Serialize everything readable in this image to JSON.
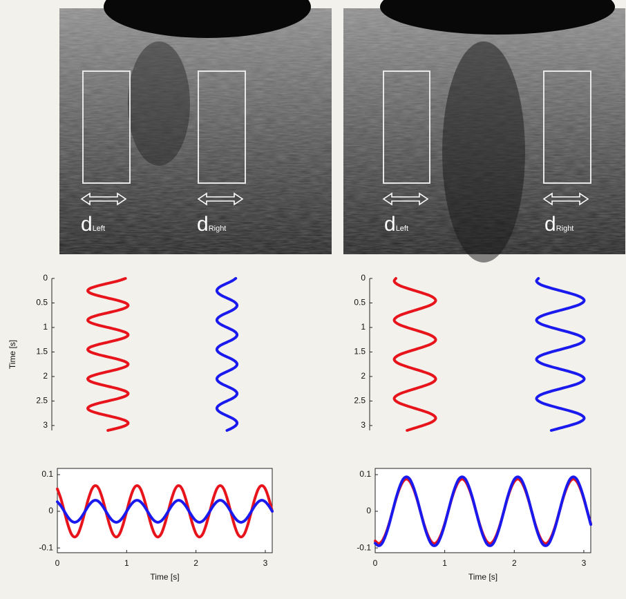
{
  "images": [
    {
      "labels": [
        {
          "main": "d",
          "sub": "Left"
        },
        {
          "main": "d",
          "sub": "Right"
        }
      ]
    },
    {
      "labels": [
        {
          "main": "d",
          "sub": "Left"
        },
        {
          "main": "d",
          "sub": "Right"
        }
      ]
    }
  ],
  "chart_data": [
    {
      "type": "line",
      "orientation": "vertical",
      "xlabel": "Time [s]",
      "x": [
        0,
        0.05,
        0.1,
        0.15,
        0.2,
        0.25,
        0.3,
        0.35,
        0.4,
        0.45,
        0.5,
        0.55,
        0.6,
        0.65,
        0.7,
        0.75,
        0.8,
        0.85,
        0.9,
        0.95,
        1,
        1.05,
        1.1,
        1.15,
        1.2,
        1.25,
        1.3,
        1.35,
        1.4,
        1.45,
        1.5,
        1.55,
        1.6,
        1.65,
        1.7,
        1.75,
        1.8,
        1.85,
        1.9,
        1.95,
        2,
        2.05,
        2.1,
        2.15,
        2.2,
        2.25,
        2.3,
        2.35,
        2.4,
        2.45,
        2.5,
        2.55,
        2.6,
        2.65,
        2.7,
        2.75,
        2.8,
        2.85,
        2.9,
        2.95,
        3,
        3.05,
        3.1
      ],
      "xlim": [
        0,
        3.1
      ],
      "xticks": [
        0,
        0.5,
        1,
        1.5,
        2,
        2.5,
        3
      ],
      "ylim": [
        0,
        1
      ],
      "series": [
        {
          "color": "#e8141c",
          "values": [
            0.328,
            0.295,
            0.25,
            0.205,
            0.172,
            0.16,
            0.172,
            0.205,
            0.25,
            0.295,
            0.328,
            0.34,
            0.328,
            0.295,
            0.25,
            0.205,
            0.172,
            0.16,
            0.172,
            0.205,
            0.25,
            0.295,
            0.328,
            0.34,
            0.328,
            0.295,
            0.25,
            0.205,
            0.172,
            0.16,
            0.172,
            0.205,
            0.25,
            0.295,
            0.328,
            0.34,
            0.328,
            0.295,
            0.25,
            0.205,
            0.172,
            0.16,
            0.172,
            0.205,
            0.25,
            0.295,
            0.328,
            0.34,
            0.328,
            0.295,
            0.25,
            0.205,
            0.172,
            0.16,
            0.172,
            0.205,
            0.25,
            0.295,
            0.328,
            0.34,
            0.328,
            0.295,
            0.25
          ]
        },
        {
          "color": "#1a1aee",
          "values": [
            0.819,
            0.803,
            0.78,
            0.757,
            0.741,
            0.735,
            0.741,
            0.757,
            0.78,
            0.803,
            0.819,
            0.825,
            0.819,
            0.803,
            0.78,
            0.757,
            0.741,
            0.735,
            0.741,
            0.757,
            0.78,
            0.803,
            0.819,
            0.825,
            0.819,
            0.803,
            0.78,
            0.757,
            0.741,
            0.735,
            0.741,
            0.757,
            0.78,
            0.803,
            0.819,
            0.825,
            0.819,
            0.803,
            0.78,
            0.757,
            0.741,
            0.735,
            0.741,
            0.757,
            0.78,
            0.803,
            0.819,
            0.825,
            0.819,
            0.803,
            0.78,
            0.757,
            0.741,
            0.735,
            0.741,
            0.757,
            0.78,
            0.803,
            0.819,
            0.825,
            0.819,
            0.803,
            0.78
          ]
        }
      ]
    },
    {
      "type": "line",
      "orientation": "vertical",
      "x": [
        0,
        0.05,
        0.1,
        0.15,
        0.2,
        0.25,
        0.3,
        0.35,
        0.4,
        0.45,
        0.5,
        0.55,
        0.6,
        0.65,
        0.7,
        0.75,
        0.8,
        0.85,
        0.9,
        0.95,
        1,
        1.05,
        1.1,
        1.15,
        1.2,
        1.25,
        1.3,
        1.35,
        1.4,
        1.45,
        1.5,
        1.55,
        1.6,
        1.65,
        1.7,
        1.75,
        1.8,
        1.85,
        1.9,
        1.95,
        2,
        2.05,
        2.1,
        2.15,
        2.2,
        2.25,
        2.3,
        2.35,
        2.4,
        2.45,
        2.5,
        2.55,
        2.6,
        2.65,
        2.7,
        2.75,
        2.8,
        2.85,
        2.9,
        2.95,
        3,
        3.05,
        3.1
      ],
      "xlim": [
        0,
        3.1
      ],
      "xticks": [
        0,
        0.5,
        1,
        1.5,
        2,
        2.5,
        3
      ],
      "ylim": [
        0,
        1
      ],
      "series": [
        {
          "color": "#e8141c",
          "values": [
            0.11,
            0.103,
            0.11,
            0.128,
            0.157,
            0.19,
            0.223,
            0.252,
            0.27,
            0.277,
            0.27,
            0.252,
            0.223,
            0.19,
            0.157,
            0.128,
            0.11,
            0.103,
            0.11,
            0.128,
            0.157,
            0.19,
            0.223,
            0.252,
            0.27,
            0.277,
            0.27,
            0.252,
            0.223,
            0.19,
            0.157,
            0.128,
            0.11,
            0.103,
            0.11,
            0.128,
            0.157,
            0.19,
            0.223,
            0.252,
            0.27,
            0.277,
            0.27,
            0.252,
            0.223,
            0.19,
            0.157,
            0.128,
            0.11,
            0.103,
            0.11,
            0.128,
            0.157,
            0.19,
            0.223,
            0.252,
            0.27,
            0.277,
            0.27,
            0.252,
            0.223,
            0.19,
            0.157
          ]
        },
        {
          "color": "#1a1aee",
          "values": [
            0.708,
            0.7,
            0.708,
            0.729,
            0.762,
            0.8,
            0.838,
            0.871,
            0.892,
            0.9,
            0.892,
            0.871,
            0.838,
            0.8,
            0.762,
            0.729,
            0.708,
            0.7,
            0.708,
            0.729,
            0.762,
            0.8,
            0.838,
            0.871,
            0.892,
            0.9,
            0.892,
            0.871,
            0.838,
            0.8,
            0.762,
            0.729,
            0.708,
            0.7,
            0.708,
            0.729,
            0.762,
            0.8,
            0.838,
            0.871,
            0.892,
            0.9,
            0.892,
            0.871,
            0.838,
            0.8,
            0.762,
            0.729,
            0.708,
            0.7,
            0.708,
            0.729,
            0.762,
            0.8,
            0.838,
            0.871,
            0.892,
            0.9,
            0.892,
            0.871,
            0.838,
            0.8,
            0.762
          ]
        }
      ]
    },
    {
      "type": "line",
      "xlabel": "Time [s]",
      "x": [
        0,
        0.05,
        0.1,
        0.15,
        0.2,
        0.25,
        0.3,
        0.35,
        0.4,
        0.45,
        0.5,
        0.55,
        0.6,
        0.65,
        0.7,
        0.75,
        0.8,
        0.85,
        0.9,
        0.95,
        1,
        1.05,
        1.1,
        1.15,
        1.2,
        1.25,
        1.3,
        1.35,
        1.4,
        1.45,
        1.5,
        1.55,
        1.6,
        1.65,
        1.7,
        1.75,
        1.8,
        1.85,
        1.9,
        1.95,
        2,
        2.05,
        2.1,
        2.15,
        2.2,
        2.25,
        2.3,
        2.35,
        2.4,
        2.45,
        2.5,
        2.55,
        2.6,
        2.65,
        2.7,
        2.75,
        2.8,
        2.85,
        2.9,
        2.95,
        3,
        3.05,
        3.1
      ],
      "xlim": [
        0,
        3.1
      ],
      "xticks": [
        0,
        1,
        2,
        3
      ],
      "ylim": [
        -0.113,
        0.117
      ],
      "yticks": [
        -0.1,
        0,
        0.1
      ],
      "series": [
        {
          "color": "#e8141c",
          "values": [
            0.061,
            0.035,
            0,
            -0.035,
            -0.061,
            -0.07,
            -0.061,
            -0.035,
            0,
            0.035,
            0.061,
            0.07,
            0.061,
            0.035,
            0,
            -0.035,
            -0.061,
            -0.07,
            -0.061,
            -0.035,
            0,
            0.035,
            0.061,
            0.07,
            0.061,
            0.035,
            0,
            -0.035,
            -0.061,
            -0.07,
            -0.061,
            -0.035,
            0,
            0.035,
            0.061,
            0.07,
            0.061,
            0.035,
            0,
            -0.035,
            -0.061,
            -0.07,
            -0.061,
            -0.035,
            0,
            0.035,
            0.061,
            0.07,
            0.061,
            0.035,
            0,
            -0.035,
            -0.061,
            -0.07,
            -0.061,
            -0.035,
            0,
            0.035,
            0.061,
            0.07,
            0.061,
            0.035,
            0
          ]
        },
        {
          "color": "#1a1aee",
          "values": [
            0.026,
            0.015,
            0,
            -0.015,
            -0.026,
            -0.03,
            -0.026,
            -0.015,
            0,
            0.015,
            0.026,
            0.03,
            0.026,
            0.015,
            0,
            -0.015,
            -0.026,
            -0.03,
            -0.026,
            -0.015,
            0,
            0.015,
            0.026,
            0.03,
            0.026,
            0.015,
            0,
            -0.015,
            -0.026,
            -0.03,
            -0.026,
            -0.015,
            0,
            0.015,
            0.026,
            0.03,
            0.026,
            0.015,
            0,
            -0.015,
            -0.026,
            -0.03,
            -0.026,
            -0.015,
            0,
            0.015,
            0.026,
            0.03,
            0.026,
            0.015,
            0,
            -0.015,
            -0.026,
            -0.03,
            -0.026,
            -0.015,
            0,
            0.015,
            0.026,
            0.03,
            0.026,
            0.015,
            0
          ]
        }
      ]
    },
    {
      "type": "line",
      "xlabel": "Time [s]",
      "x": [
        0,
        0.05,
        0.1,
        0.15,
        0.2,
        0.25,
        0.3,
        0.35,
        0.4,
        0.45,
        0.5,
        0.55,
        0.6,
        0.65,
        0.7,
        0.75,
        0.8,
        0.85,
        0.9,
        0.95,
        1,
        1.05,
        1.1,
        1.15,
        1.2,
        1.25,
        1.3,
        1.35,
        1.4,
        1.45,
        1.5,
        1.55,
        1.6,
        1.65,
        1.7,
        1.75,
        1.8,
        1.85,
        1.9,
        1.95,
        2,
        2.05,
        2.1,
        2.15,
        2.2,
        2.25,
        2.3,
        2.35,
        2.4,
        2.45,
        2.5,
        2.55,
        2.6,
        2.65,
        2.7,
        2.75,
        2.8,
        2.85,
        2.9,
        2.95,
        3,
        3.05,
        3.1
      ],
      "xlim": [
        0,
        3.1
      ],
      "xticks": [
        0,
        1,
        2,
        3
      ],
      "ylim": [
        -0.113,
        0.117
      ],
      "yticks": [
        -0.1,
        0,
        0.1
      ],
      "series": [
        {
          "color": "#e8141c",
          "values": [
            -0.081,
            -0.088,
            -0.081,
            -0.062,
            -0.034,
            0,
            0.034,
            0.062,
            0.081,
            0.088,
            0.081,
            0.062,
            0.034,
            0,
            -0.034,
            -0.062,
            -0.081,
            -0.088,
            -0.081,
            -0.062,
            -0.034,
            0,
            0.034,
            0.062,
            0.081,
            0.088,
            0.081,
            0.062,
            0.034,
            0,
            -0.034,
            -0.062,
            -0.081,
            -0.088,
            -0.081,
            -0.062,
            -0.034,
            0,
            0.034,
            0.062,
            0.081,
            0.088,
            0.081,
            0.062,
            0.034,
            0,
            -0.034,
            -0.062,
            -0.081,
            -0.088,
            -0.081,
            -0.062,
            -0.034,
            0,
            0.034,
            0.062,
            0.081,
            0.088,
            0.081,
            0.062,
            0.034,
            0,
            -0.034
          ]
        },
        {
          "color": "#1a1aee",
          "values": [
            -0.087,
            -0.094,
            -0.087,
            -0.066,
            -0.036,
            0,
            0.036,
            0.066,
            0.087,
            0.094,
            0.087,
            0.066,
            0.036,
            0,
            -0.036,
            -0.066,
            -0.087,
            -0.094,
            -0.087,
            -0.066,
            -0.036,
            0,
            0.036,
            0.066,
            0.087,
            0.094,
            0.087,
            0.066,
            0.036,
            0,
            -0.036,
            -0.066,
            -0.087,
            -0.094,
            -0.087,
            -0.066,
            -0.036,
            0,
            0.036,
            0.066,
            0.087,
            0.094,
            0.087,
            0.066,
            0.036,
            0,
            -0.036,
            -0.066,
            -0.087,
            -0.094,
            -0.087,
            -0.066,
            -0.036,
            0,
            0.036,
            0.066,
            0.087,
            0.094,
            0.087,
            0.066,
            0.036,
            0,
            -0.036
          ]
        }
      ]
    }
  ]
}
